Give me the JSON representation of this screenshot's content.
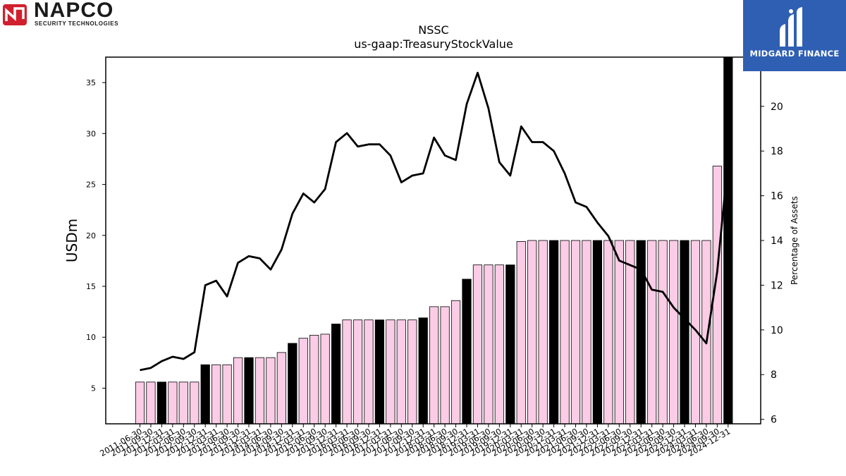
{
  "branding": {
    "left_name": "NAPCO",
    "left_tagline": "SECURITY TECHNOLOGIES",
    "left_mark_color": "#d0202e",
    "right_name": "MIDGARD FINANCE",
    "right_bg_color": "#2f5fb3"
  },
  "chart_data": {
    "type": "bar",
    "title": "NSSC",
    "subtitle": "us-gaap:TreasuryStockValue",
    "ylabel": "USDm",
    "y2label": "Percentage of Assets",
    "ylim": [
      1.5,
      37.5
    ],
    "y2lim": [
      5.8,
      22.2
    ],
    "yticks": [
      5,
      10,
      15,
      20,
      25,
      30,
      35
    ],
    "y2ticks": [
      6,
      8,
      10,
      12,
      14,
      16,
      18,
      20
    ],
    "bar_color": "#fbcce6",
    "highlight_color": "#000000",
    "line_color": "#000000",
    "categories": [
      "2011-06-30",
      "2011-09-30",
      "2011-12-31",
      "2012-03-31",
      "2012-06-30",
      "2012-09-30",
      "2012-12-31",
      "2013-03-31",
      "2013-06-30",
      "2013-09-30",
      "2013-12-31",
      "2014-03-31",
      "2014-06-30",
      "2014-09-30",
      "2014-12-31",
      "2015-03-31",
      "2015-06-30",
      "2015-09-30",
      "2015-12-31",
      "2016-03-31",
      "2016-06-30",
      "2016-09-30",
      "2016-12-31",
      "2017-03-31",
      "2017-06-30",
      "2017-09-30",
      "2017-12-31",
      "2018-03-31",
      "2018-06-30",
      "2018-09-30",
      "2018-12-31",
      "2019-03-31",
      "2019-06-30",
      "2019-09-30",
      "2019-12-31",
      "2020-03-31",
      "2020-06-30",
      "2020-09-30",
      "2020-12-31",
      "2021-03-31",
      "2021-06-30",
      "2021-09-30",
      "2021-12-31",
      "2022-03-31",
      "2022-06-30",
      "2022-09-30",
      "2022-12-31",
      "2023-03-31",
      "2023-06-30",
      "2023-09-30",
      "2023-12-31",
      "2024-03-31",
      "2024-06-30",
      "2024-09-30",
      "2024-12-31"
    ],
    "series": [
      {
        "axis": "left",
        "style": "bar",
        "values": [
          5.6,
          5.6,
          5.6,
          5.6,
          5.6,
          5.6,
          7.3,
          7.3,
          7.3,
          8.0,
          8.0,
          8.0,
          8.0,
          8.5,
          9.4,
          9.9,
          10.2,
          10.3,
          11.3,
          11.7,
          11.7,
          11.7,
          11.7,
          11.7,
          11.7,
          11.7,
          11.9,
          13.0,
          13.0,
          13.6,
          15.7,
          17.1,
          17.1,
          17.1,
          17.1,
          19.4,
          19.5,
          19.5,
          19.5,
          19.5,
          19.5,
          19.5,
          19.5,
          19.5,
          19.5,
          19.5,
          19.5,
          19.5,
          19.5,
          19.5,
          19.5,
          19.5,
          19.5,
          26.8,
          37.5
        ],
        "highlight": [
          false,
          false,
          true,
          false,
          false,
          false,
          true,
          false,
          false,
          false,
          true,
          false,
          false,
          false,
          true,
          false,
          false,
          false,
          true,
          false,
          false,
          false,
          true,
          false,
          false,
          false,
          true,
          false,
          false,
          false,
          true,
          false,
          false,
          false,
          true,
          false,
          false,
          false,
          true,
          false,
          false,
          false,
          true,
          false,
          false,
          false,
          true,
          false,
          false,
          false,
          true,
          false,
          false,
          false,
          true
        ]
      },
      {
        "axis": "right",
        "style": "line",
        "values": [
          8.2,
          8.3,
          8.6,
          8.8,
          8.7,
          9.0,
          12.0,
          12.2,
          11.5,
          13.0,
          13.3,
          13.2,
          12.7,
          13.6,
          15.2,
          16.1,
          15.7,
          16.3,
          18.4,
          18.8,
          18.2,
          18.3,
          18.3,
          17.8,
          16.6,
          16.9,
          17.0,
          18.6,
          17.8,
          17.6,
          20.1,
          21.5,
          19.9,
          17.5,
          16.9,
          19.1,
          18.4,
          18.4,
          18.0,
          17.0,
          15.7,
          15.5,
          14.8,
          14.2,
          13.1,
          12.9,
          12.7,
          11.8,
          11.7,
          11.0,
          10.5,
          10.0,
          9.4,
          12.6,
          17.6
        ]
      }
    ]
  }
}
